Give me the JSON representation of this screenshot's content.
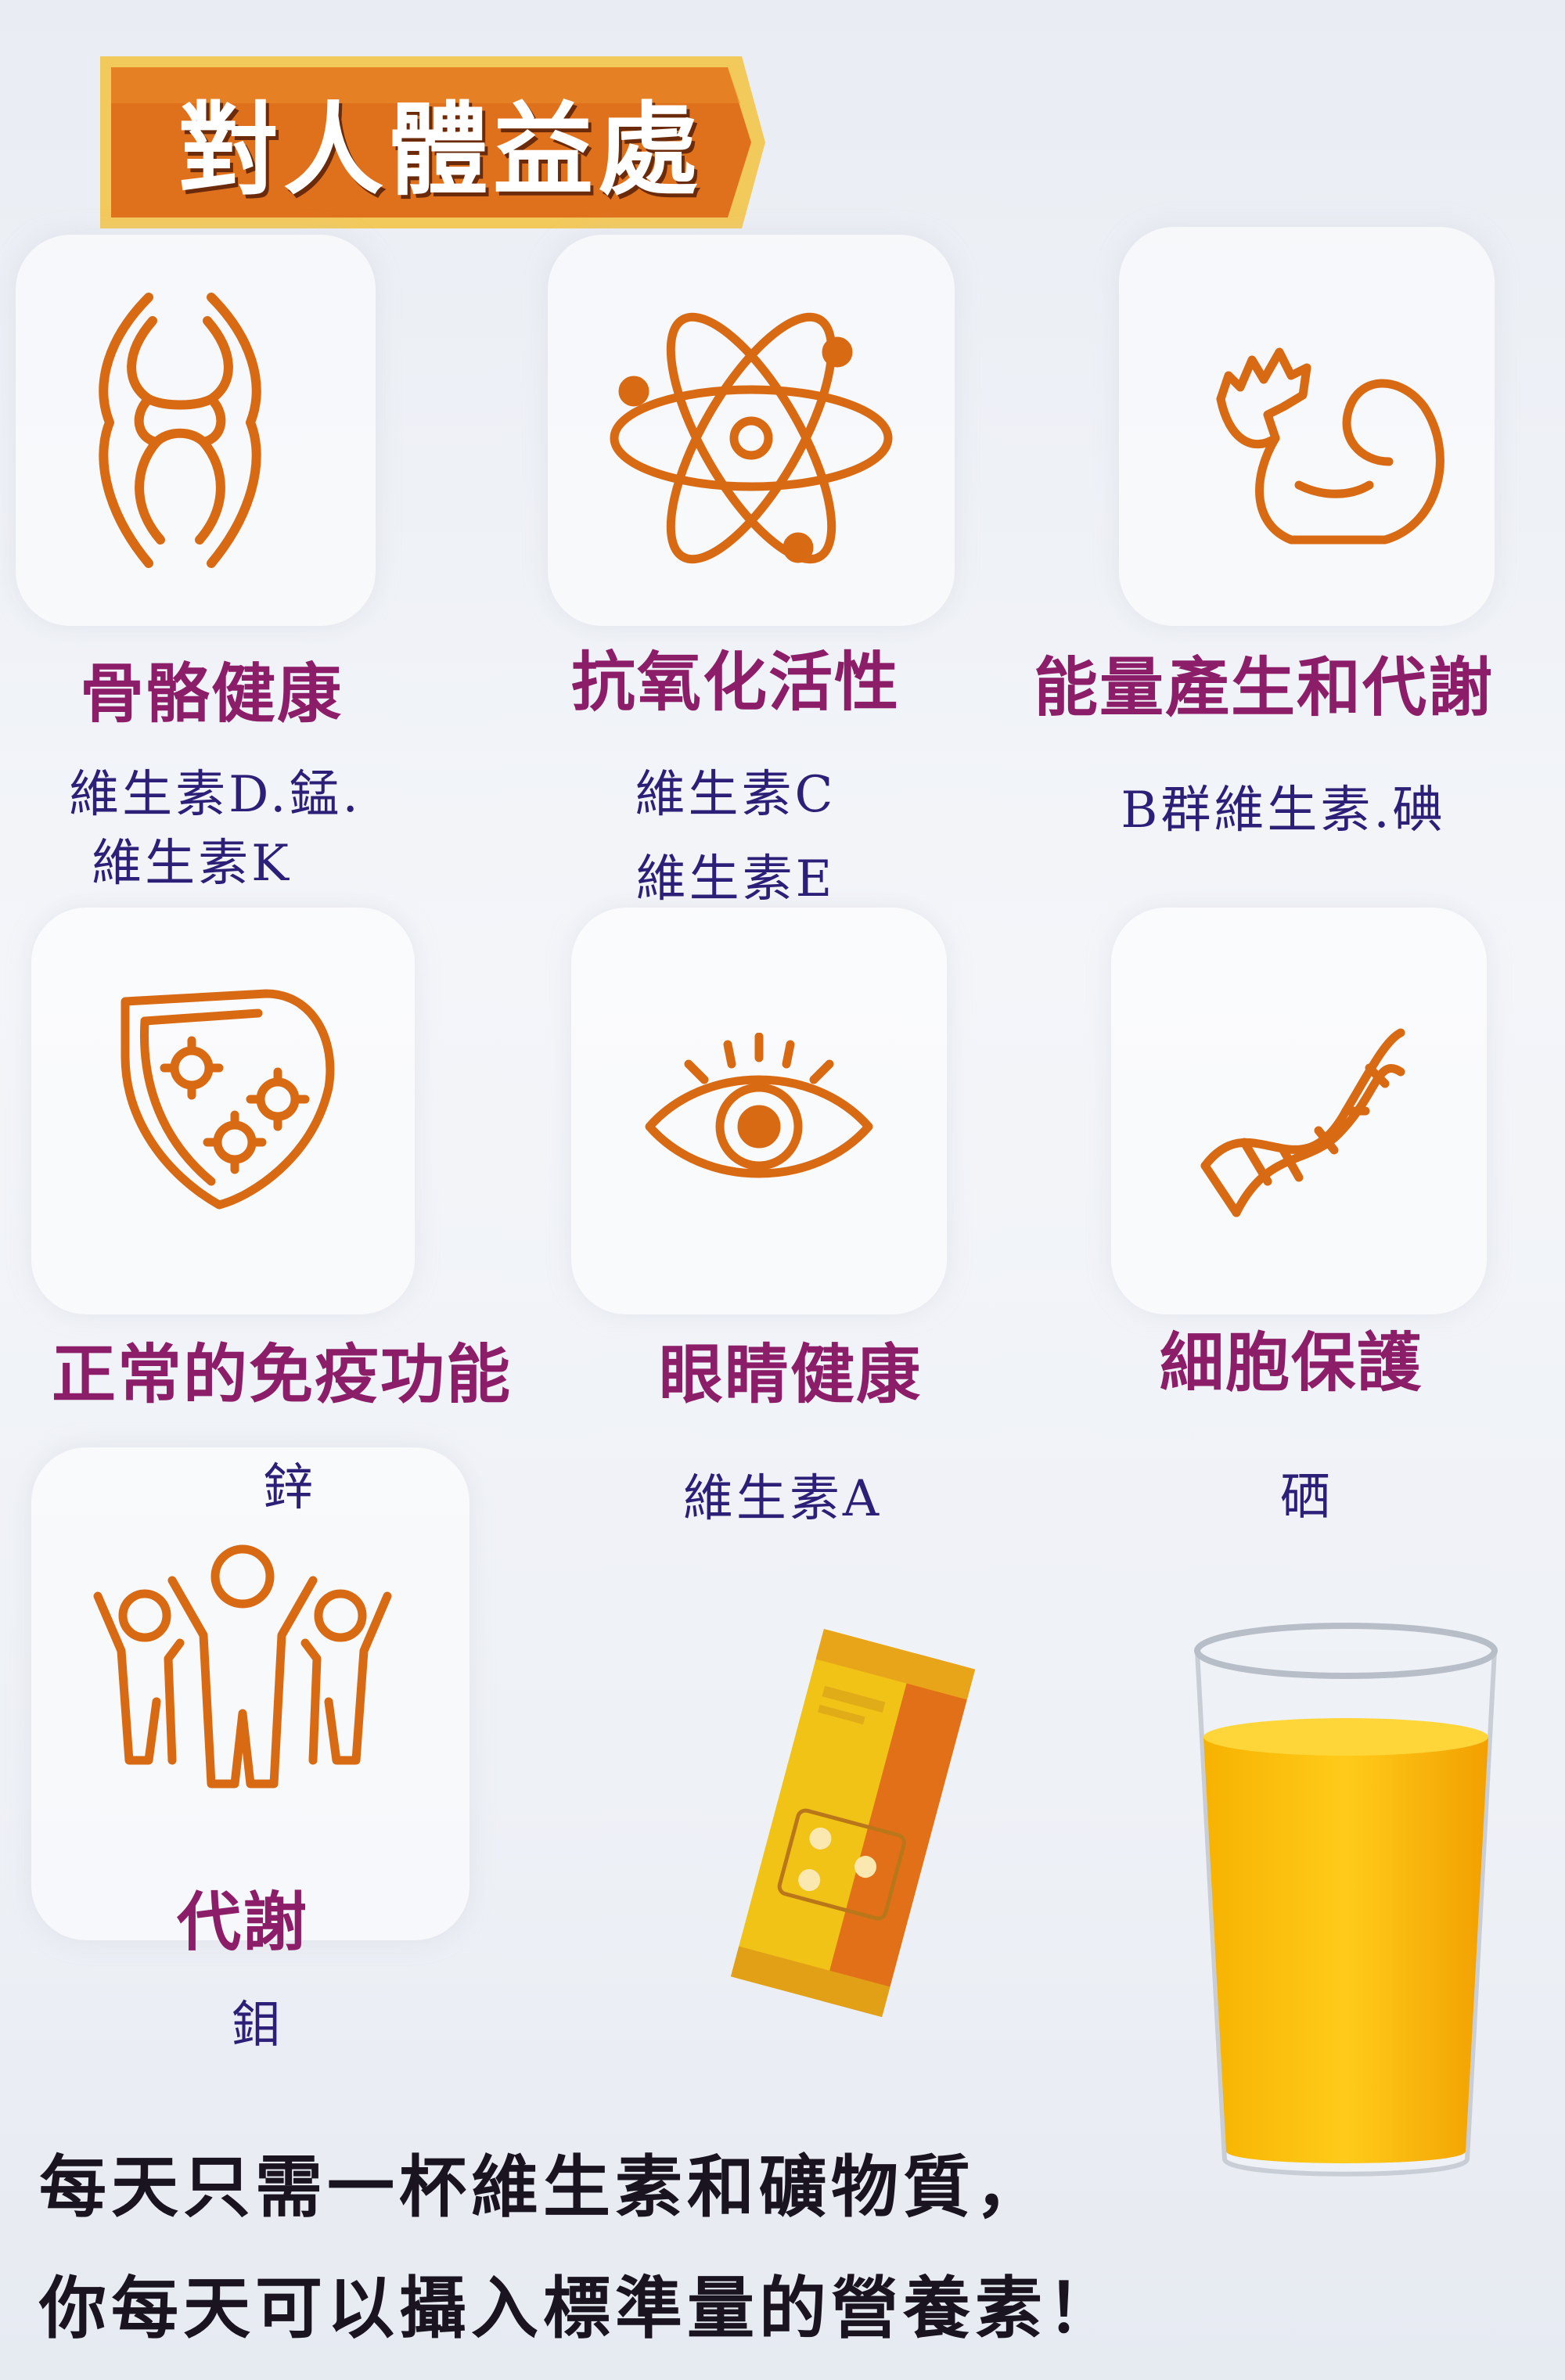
{
  "header": {
    "title": "對人體益處"
  },
  "benefits": [
    {
      "icon": "joint-icon",
      "title": "骨骼健康",
      "nutrients": [
        "維生素D.錳.",
        "維生素K"
      ]
    },
    {
      "icon": "atom-icon",
      "title": "抗氧化活性",
      "nutrients": [
        "維生素C",
        "維生素E"
      ]
    },
    {
      "icon": "muscle-arm-icon",
      "title": "能量產生和代謝",
      "nutrients": [
        "B群維生素.碘"
      ]
    },
    {
      "icon": "immune-shield-icon",
      "title": "正常的免疫功能",
      "nutrients": [
        "鋅"
      ]
    },
    {
      "icon": "eye-icon",
      "title": "眼睛健康",
      "nutrients": [
        "維生素A"
      ]
    },
    {
      "icon": "dna-icon",
      "title": "細胞保護",
      "nutrients": [
        "硒"
      ]
    },
    {
      "icon": "people-group-icon",
      "title": "代謝",
      "nutrients": [
        "鉬"
      ]
    }
  ],
  "footer": {
    "line1": "每天只需一杯維生素和礦物質，",
    "line2": "你每天可以攝入標準量的營養素！"
  },
  "colors": {
    "icon_orange": "#d96a14",
    "benefit_title": "#8c1d68",
    "nutrient_text": "#2b1f77",
    "banner_fill": "#e0711c"
  }
}
